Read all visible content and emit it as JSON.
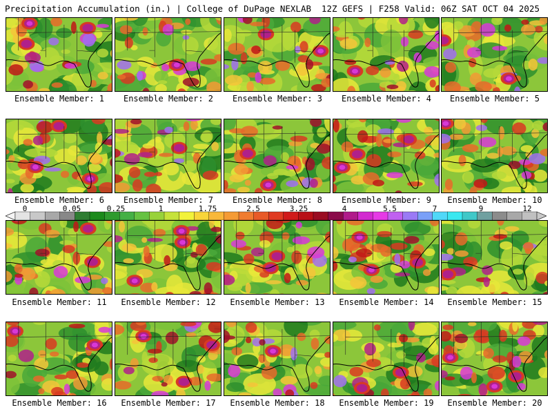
{
  "header": {
    "title_left": "Precipitation Accumulation (in.) | College of DuPage NEXLAB",
    "title_right": "12Z GEFS | F258 Valid: 06Z SAT OCT 04 2025"
  },
  "colorbar": {
    "labels": [
      "0",
      "0.05",
      "0.25",
      "1",
      "1.75",
      "2.5",
      "3.25",
      "4",
      "5.5",
      "7",
      "9",
      "12"
    ],
    "colors": [
      "#e4e4e4",
      "#c8c8c8",
      "#a8a8a8",
      "#888888",
      "#2e7d32",
      "#1b8a1b",
      "#2e9a2e",
      "#45b045",
      "#66c242",
      "#98d23a",
      "#c6e23a",
      "#f2f23a",
      "#f8d53a",
      "#f8b83a",
      "#f59b35",
      "#f07c30",
      "#e85a28",
      "#e03a22",
      "#d01a1a",
      "#b81016",
      "#9a0c22",
      "#8a0a4a",
      "#b01a8a",
      "#d22ad0",
      "#e63ae6",
      "#c060f0",
      "#9a7af5",
      "#7aa0f8",
      "#50d8f8",
      "#3ae8f0",
      "#40c8c8",
      "#70a0a0",
      "#8c8c8c",
      "#a8a8a8",
      "#c0c0c0"
    ]
  },
  "members": [
    {
      "label": "Ensemble Member: 1"
    },
    {
      "label": "Ensemble Member: 2"
    },
    {
      "label": "Ensemble Member: 3"
    },
    {
      "label": "Ensemble Member: 4"
    },
    {
      "label": "Ensemble Member: 5"
    },
    {
      "label": "Ensemble Member: 6"
    },
    {
      "label": "Ensemble Member: 7"
    },
    {
      "label": "Ensemble Member: 8"
    },
    {
      "label": "Ensemble Member: 9"
    },
    {
      "label": "Ensemble Member: 10"
    },
    {
      "label": "Ensemble Member: 11"
    },
    {
      "label": "Ensemble Member: 12"
    },
    {
      "label": "Ensemble Member: 13"
    },
    {
      "label": "Ensemble Member: 14"
    },
    {
      "label": "Ensemble Member: 15"
    },
    {
      "label": "Ensemble Member: 16"
    },
    {
      "label": "Ensemble Member: 17"
    },
    {
      "label": "Ensemble Member: 18"
    },
    {
      "label": "Ensemble Member: 19"
    },
    {
      "label": "Ensemble Member: 20"
    }
  ]
}
